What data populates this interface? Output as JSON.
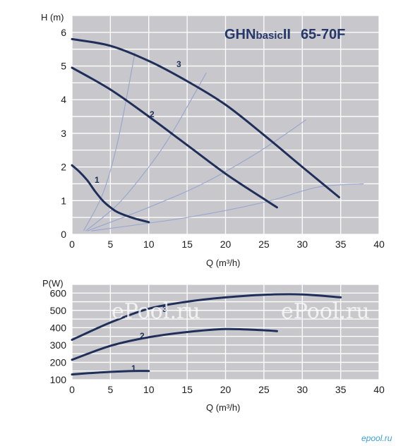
{
  "chart_data": [
    {
      "type": "line",
      "title": "GHNbasicII 65-70F",
      "title_parts": [
        "GHN",
        "basic",
        "II",
        "65-70F"
      ],
      "xlabel": "Q (m³/h)",
      "ylabel": "H (m)",
      "xlim": [
        0,
        40
      ],
      "ylim": [
        0,
        6.5
      ],
      "xticks": [
        0,
        5,
        10,
        15,
        20,
        25,
        30,
        35,
        40
      ],
      "yticks": [
        0,
        1,
        2,
        3,
        4,
        5,
        6
      ],
      "grid": true,
      "background": "#c8c8cc",
      "series": [
        {
          "name": "1",
          "x": [
            0,
            1,
            2,
            3,
            4,
            5,
            6,
            8,
            10
          ],
          "y": [
            2.05,
            1.85,
            1.6,
            1.28,
            1.0,
            0.8,
            0.65,
            0.48,
            0.36
          ]
        },
        {
          "name": "2",
          "x": [
            0,
            5,
            10,
            15,
            20,
            25,
            26.7
          ],
          "y": [
            4.95,
            4.3,
            3.5,
            2.65,
            1.8,
            1.05,
            0.8
          ]
        },
        {
          "name": "3",
          "x": [
            0,
            5,
            10,
            15,
            20,
            25,
            30,
            34.8
          ],
          "y": [
            5.8,
            5.6,
            5.15,
            4.55,
            3.85,
            2.95,
            2.0,
            1.1
          ]
        }
      ],
      "system_curves": [
        {
          "x": [
            1.5,
            4,
            6,
            8.2
          ],
          "y": [
            0.1,
            1.2,
            2.8,
            5.4
          ]
        },
        {
          "x": [
            1.8,
            6,
            10,
            13,
            17.5
          ],
          "y": [
            0.1,
            0.9,
            2.0,
            3.0,
            4.8
          ]
        },
        {
          "x": [
            2,
            10,
            17,
            24,
            30.5
          ],
          "y": [
            0.1,
            0.8,
            1.5,
            2.4,
            3.4
          ]
        },
        {
          "x": [
            2.5,
            15,
            25,
            32,
            38
          ],
          "y": [
            0.1,
            0.5,
            0.95,
            1.4,
            1.5
          ]
        }
      ]
    },
    {
      "type": "line",
      "xlabel": "Q (m³/h)",
      "ylabel": "P(W)",
      "xlim": [
        0,
        40
      ],
      "ylim": [
        100,
        650
      ],
      "xticks": [
        0,
        5,
        10,
        15,
        20,
        25,
        30,
        35,
        40
      ],
      "yticks": [
        100,
        200,
        300,
        400,
        500,
        600
      ],
      "grid": true,
      "background": "#c8c8cc",
      "series": [
        {
          "name": "1",
          "x": [
            0,
            3,
            6,
            8,
            10
          ],
          "y": [
            130,
            140,
            147,
            150,
            150
          ]
        },
        {
          "name": "2",
          "x": [
            0,
            5,
            10,
            15,
            20,
            25,
            26.7
          ],
          "y": [
            215,
            295,
            345,
            375,
            392,
            385,
            380
          ]
        },
        {
          "name": "3",
          "x": [
            0,
            5,
            10,
            15,
            20,
            25,
            30,
            35
          ],
          "y": [
            330,
            430,
            510,
            550,
            575,
            590,
            592,
            575
          ]
        }
      ]
    }
  ],
  "watermarks": [
    "ol.ru",
    "ePool.ru",
    "ePool.ru"
  ],
  "logo_text": "epool.ru",
  "colors": {
    "curve": "#1f2f5a",
    "system_curve": "#9aa7cf",
    "grid": "#ffffff",
    "plot_bg": "#c8c8cc",
    "logo": "#3aa0d8"
  }
}
